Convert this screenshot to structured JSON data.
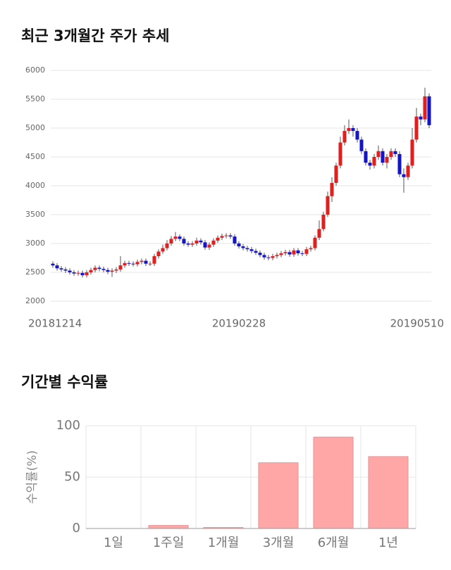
{
  "chart_data": [
    {
      "type": "candlestick",
      "title": "최근 3개월간 주가 추세",
      "categories": [
        "20181214",
        null,
        null,
        null,
        null,
        null,
        null,
        null,
        null,
        null,
        null,
        null,
        null,
        null,
        null,
        null,
        null,
        null,
        null,
        null,
        null,
        null,
        null,
        null,
        null,
        null,
        null,
        null,
        null,
        null,
        null,
        null,
        null,
        null,
        null,
        null,
        null,
        null,
        null,
        null,
        null,
        null,
        null,
        null,
        "20190228",
        null,
        null,
        null,
        null,
        null,
        null,
        null,
        null,
        null,
        null,
        null,
        null,
        null,
        null,
        null,
        null,
        null,
        null,
        null,
        null,
        null,
        null,
        null,
        null,
        null,
        null,
        null,
        null,
        null,
        null,
        null,
        null,
        null,
        null,
        null,
        null,
        null,
        null,
        null,
        null,
        null,
        null,
        null,
        null,
        "20190510"
      ],
      "open": [
        2650,
        2620,
        2570,
        2550,
        2530,
        2500,
        2480,
        2490,
        2450,
        2500,
        2540,
        2580,
        2560,
        2540,
        2510,
        2530,
        2550,
        2620,
        2660,
        2650,
        2640,
        2680,
        2700,
        2650,
        2650,
        2780,
        2860,
        2920,
        3000,
        3080,
        3120,
        3080,
        3000,
        2980,
        3000,
        3050,
        3020,
        2930,
        2980,
        3050,
        3100,
        3130,
        3140,
        3120,
        3000,
        2950,
        2920,
        2900,
        2870,
        2840,
        2800,
        2760,
        2750,
        2780,
        2800,
        2830,
        2850,
        2810,
        2880,
        2830,
        2820,
        2900,
        2920,
        3100,
        3250,
        3500,
        3820,
        4050,
        4350,
        4750,
        4950,
        5000,
        4950,
        4800,
        4600,
        4400,
        4350,
        4500,
        4600,
        4400,
        4500,
        4600,
        4550,
        4200,
        4150,
        4350,
        4800,
        5200,
        5150,
        5550
      ],
      "high": [
        2690,
        2660,
        2610,
        2590,
        2570,
        2540,
        2530,
        2530,
        2540,
        2580,
        2620,
        2620,
        2600,
        2580,
        2570,
        2590,
        2780,
        2700,
        2700,
        2690,
        2720,
        2740,
        2740,
        2690,
        2820,
        2900,
        2980,
        3060,
        3130,
        3200,
        3160,
        3120,
        3040,
        3040,
        3100,
        3090,
        3060,
        3020,
        3090,
        3140,
        3170,
        3180,
        3180,
        3160,
        3040,
        2990,
        2960,
        2940,
        2910,
        2880,
        2840,
        2800,
        2820,
        2840,
        2870,
        2890,
        2890,
        2920,
        2920,
        2870,
        2940,
        2960,
        3140,
        3400,
        3550,
        3900,
        4150,
        4400,
        4850,
        5050,
        5150,
        5050,
        5000,
        4850,
        4650,
        4450,
        4550,
        4700,
        4650,
        4550,
        4650,
        4650,
        4600,
        4300,
        4400,
        5000,
        5350,
        5250,
        5700,
        5600
      ],
      "low": [
        2580,
        2530,
        2510,
        2490,
        2460,
        2440,
        2440,
        2410,
        2410,
        2460,
        2500,
        2520,
        2500,
        2470,
        2420,
        2490,
        2510,
        2580,
        2610,
        2600,
        2600,
        2640,
        2610,
        2610,
        2610,
        2740,
        2820,
        2880,
        2960,
        3040,
        3040,
        2960,
        2940,
        2940,
        2960,
        2980,
        2890,
        2890,
        2940,
        3010,
        3060,
        3090,
        3080,
        2960,
        2910,
        2880,
        2860,
        2830,
        2800,
        2760,
        2720,
        2710,
        2710,
        2740,
        2760,
        2790,
        2770,
        2770,
        2790,
        2780,
        2780,
        2860,
        2880,
        3060,
        3210,
        3460,
        3720,
        4000,
        4300,
        4700,
        4900,
        4850,
        4750,
        4550,
        4350,
        4280,
        4300,
        4450,
        4350,
        4300,
        4450,
        4500,
        4150,
        3880,
        4100,
        4300,
        4750,
        5050,
        5100,
        5000
      ],
      "close": [
        2620,
        2570,
        2550,
        2530,
        2500,
        2480,
        2490,
        2450,
        2500,
        2540,
        2580,
        2560,
        2540,
        2510,
        2530,
        2550,
        2620,
        2660,
        2650,
        2640,
        2680,
        2700,
        2650,
        2650,
        2780,
        2860,
        2920,
        3000,
        3080,
        3120,
        3080,
        3000,
        2980,
        3000,
        3050,
        3020,
        2930,
        2980,
        3050,
        3100,
        3130,
        3140,
        3120,
        3000,
        2950,
        2920,
        2900,
        2870,
        2840,
        2800,
        2760,
        2750,
        2780,
        2800,
        2830,
        2850,
        2810,
        2880,
        2830,
        2820,
        2900,
        2920,
        3100,
        3250,
        3500,
        3820,
        4050,
        4350,
        4750,
        4950,
        5000,
        4950,
        4800,
        4600,
        4400,
        4350,
        4500,
        4600,
        4400,
        4500,
        4600,
        4550,
        4200,
        4150,
        4350,
        4800,
        5200,
        5150,
        5550,
        5050
      ],
      "up_color": "#e01f1f",
      "down_color": "#1414c8",
      "ylim": [
        2000,
        6000
      ],
      "yticks": [
        2000,
        2500,
        3000,
        3500,
        4000,
        4500,
        5000,
        5500,
        6000
      ],
      "grid": true
    },
    {
      "type": "bar",
      "title": "기간별 수익률",
      "y_label": "수익률(%)",
      "categories": [
        "1일",
        "1주일",
        "1개월",
        "3개월",
        "6개월",
        "1년"
      ],
      "values": [
        0,
        3,
        1,
        64,
        89,
        70
      ],
      "color": "#ffa6a6",
      "ylim": [
        0,
        100
      ],
      "yticks": [
        0,
        50,
        100
      ],
      "grid": true
    }
  ]
}
